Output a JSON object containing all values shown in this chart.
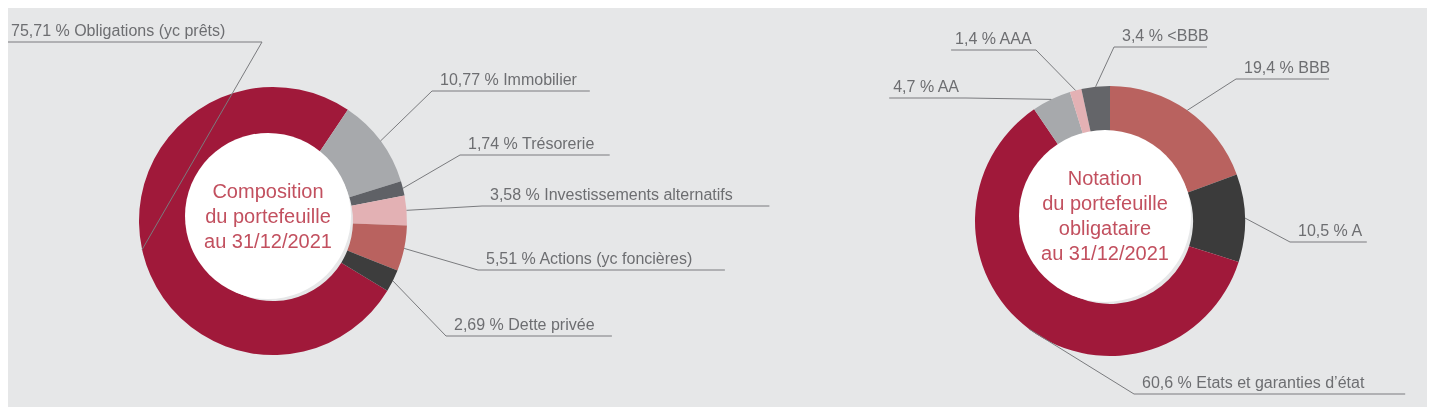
{
  "chart_data": [
    {
      "type": "donut",
      "title": "Composition\ndu portefeuille\nau 31/12/2021",
      "categories": [
        "Obligations (yc prêts)",
        "Immobilier",
        "Trésorerie",
        "Investissements alternatifs",
        "Actions (yc foncières)",
        "Dette privée"
      ],
      "values": [
        75.71,
        10.77,
        1.74,
        3.58,
        5.51,
        2.69
      ],
      "value_labels": [
        "75,71 %",
        "10,77 %",
        "1,74 %",
        "3,58 %",
        "5,51 %",
        "2,69 %"
      ],
      "colors": [
        "#a0193a",
        "#a7a9ac",
        "#5f6166",
        "#e3b1b4",
        "#b9625f",
        "#3d3d3d"
      ]
    },
    {
      "type": "donut",
      "title": "Notation\ndu portefeuille\nobligataire\nau 31/12/2021",
      "categories": [
        "BBB",
        "A",
        "Etats et garanties d’état",
        "AA",
        "AAA",
        "<BBB"
      ],
      "values": [
        19.4,
        10.5,
        60.6,
        4.7,
        1.4,
        3.4
      ],
      "value_labels": [
        "19,4 %",
        "10,5 %",
        "60,6 %",
        "4,7 %",
        "1,4 %",
        "3,4 %"
      ],
      "colors": [
        "#b9625f",
        "#3b3b3b",
        "#a0193a",
        "#a7a9ac",
        "#e3b1b4",
        "#646569"
      ]
    }
  ]
}
